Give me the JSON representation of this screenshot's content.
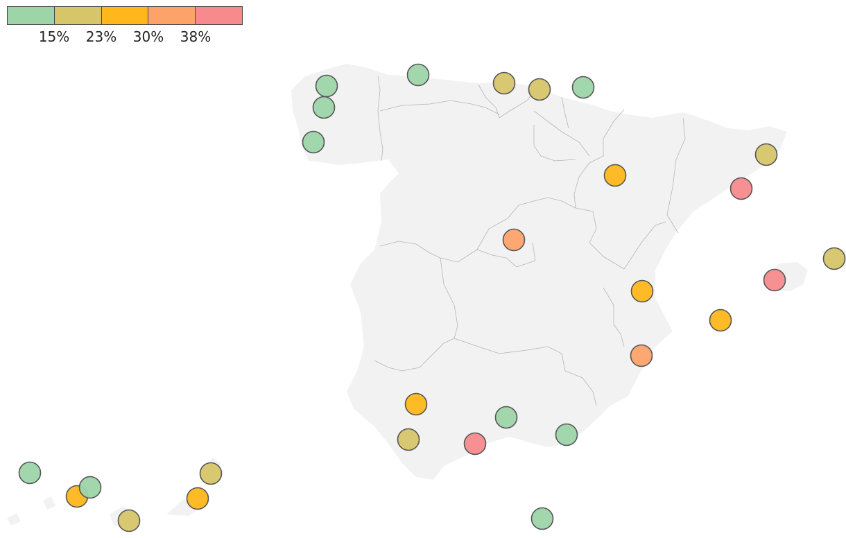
{
  "legend": {
    "colors": [
      "#9dd4a8",
      "#d7c56a",
      "#ffb71b",
      "#fda36a",
      "#f68a8c"
    ],
    "ticks": [
      "15%",
      "23%",
      "30%",
      "38%"
    ]
  },
  "map": {
    "land_color": "#f2f2f2",
    "border_color": "#b5b5b5",
    "marker_stroke": "#555555",
    "markers_count_note": "",
    "markers": [
      {
        "id": "m1",
        "category": 0
      },
      {
        "id": "m2",
        "category": 0
      },
      {
        "id": "m3",
        "category": 0
      },
      {
        "id": "m4",
        "category": 0
      },
      {
        "id": "m5",
        "category": 1
      },
      {
        "id": "m6",
        "category": 1
      },
      {
        "id": "m7",
        "category": 0
      },
      {
        "id": "m8",
        "category": 1
      },
      {
        "id": "m9",
        "category": 2
      },
      {
        "id": "m10",
        "category": 4
      },
      {
        "id": "m11",
        "category": 3
      },
      {
        "id": "m12",
        "category": 1
      },
      {
        "id": "m13",
        "category": 4
      },
      {
        "id": "m14",
        "category": 2
      },
      {
        "id": "m15",
        "category": 2
      },
      {
        "id": "m16",
        "category": 3
      },
      {
        "id": "m17",
        "category": 2
      },
      {
        "id": "m18",
        "category": 0
      },
      {
        "id": "m19",
        "category": 1
      },
      {
        "id": "m20",
        "category": 4
      },
      {
        "id": "m21",
        "category": 0
      },
      {
        "id": "m22",
        "category": 0
      },
      {
        "id": "m23",
        "category": 0
      },
      {
        "id": "m24",
        "category": 2
      },
      {
        "id": "m25",
        "category": 0
      },
      {
        "id": "m26",
        "category": 1
      },
      {
        "id": "m27",
        "category": 1
      },
      {
        "id": "m28",
        "category": 2
      }
    ]
  }
}
